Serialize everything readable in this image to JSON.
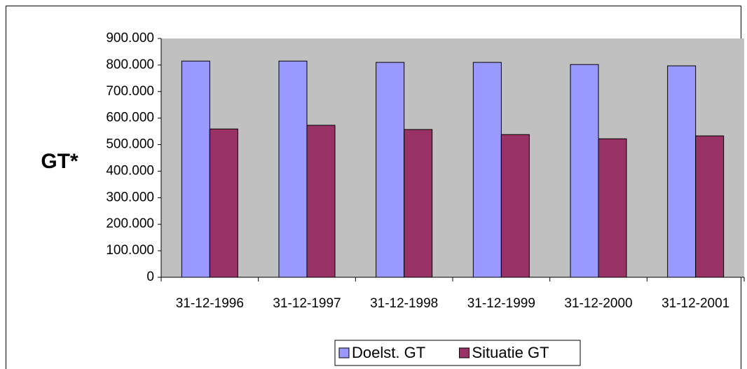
{
  "chart_data": {
    "type": "bar",
    "y_label": "GT*",
    "categories": [
      "31-12-1996",
      "31-12-1997",
      "31-12-1998",
      "31-12-1999",
      "31-12-2000",
      "31-12-2001"
    ],
    "series": [
      {
        "name": "Doelst. GT",
        "color": "#9999ff",
        "values": [
          815000,
          815000,
          810000,
          810000,
          802000,
          797000
        ]
      },
      {
        "name": "Situatie GT",
        "color": "#993366",
        "values": [
          559000,
          573000,
          557000,
          538000,
          522000,
          533000
        ]
      }
    ],
    "ylim": [
      0,
      900000
    ],
    "yticks": [
      0,
      {
        "value": 100000,
        "label": "100.000"
      },
      {
        "value": 200000,
        "label": "200.000"
      },
      {
        "value": 300000,
        "label": "300.000"
      },
      {
        "value": 400000,
        "label": "400.000"
      },
      {
        "value": 500000,
        "label": "500.000"
      },
      {
        "value": 600000,
        "label": "600.000"
      },
      {
        "value": 700000,
        "label": "700.000"
      },
      {
        "value": 800000,
        "label": "800.000"
      },
      {
        "value": 900000,
        "label": "900.000"
      }
    ],
    "plot_background": "#c0c0c0",
    "legend": "bottom"
  }
}
